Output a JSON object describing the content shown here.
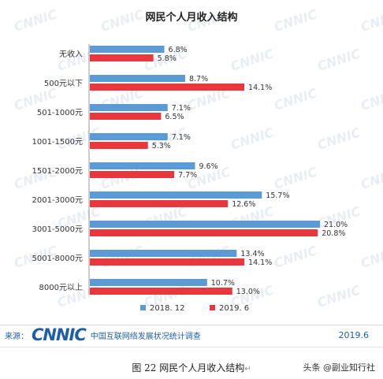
{
  "chart_data": {
    "type": "bar",
    "orientation": "horizontal",
    "title": "网民个人月收入结构",
    "categories": [
      "无收入",
      "500元以下",
      "501-1000元",
      "1001-1500元",
      "1501-2000元",
      "2001-3000元",
      "3001-5000元",
      "5001-8000元",
      "8000元以上"
    ],
    "series": [
      {
        "name": "2018. 12",
        "values": [
          6.8,
          8.7,
          7.1,
          7.1,
          9.6,
          15.7,
          21.0,
          13.4,
          10.7
        ],
        "labels": [
          "6.8%",
          "8.7%",
          "7.1%",
          "7.1%",
          "9.6%",
          "15.7%",
          "21.0%",
          "13.4%",
          "10.7%"
        ],
        "color": "#5b9bd5"
      },
      {
        "name": "2019. 6",
        "values": [
          5.8,
          14.1,
          6.5,
          5.3,
          7.7,
          12.6,
          20.8,
          14.1,
          13.0
        ],
        "labels": [
          "5.8%",
          "14.1%",
          "6.5%",
          "5.3%",
          "7.7%",
          "12.6%",
          "20.8%",
          "14.1%",
          "13.0%"
        ],
        "color": "#e8383d"
      }
    ],
    "xlim": [
      0,
      25
    ],
    "grid": false,
    "legend": "bottom",
    "watermark": "CNNIC"
  },
  "footer": {
    "source_label": "来源：",
    "logo_text": "CNNIC",
    "source_org": "中国互联网络发展状况统计调查",
    "date": "2019.6"
  },
  "caption": {
    "text": "图  22   网民个人月收入结构",
    "mark": "↵"
  },
  "toutiao": {
    "name": "头条 @副业知行社",
    "icon": "toutiao-logo-icon"
  },
  "colors": {
    "series_2018": "#5b9bd5",
    "series_2019": "#e8383d",
    "brand": "#1f5fa9"
  }
}
